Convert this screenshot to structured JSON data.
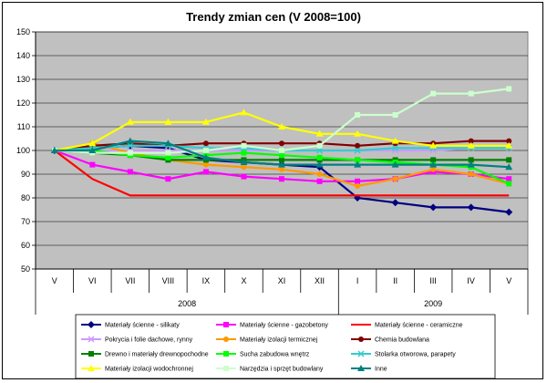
{
  "chart_data": {
    "type": "line",
    "title": "Trendy zmian cen (V 2008=100)",
    "xlabel": "",
    "ylabel": "",
    "ylim": [
      50,
      150
    ],
    "yticks": [
      50,
      60,
      70,
      80,
      90,
      100,
      110,
      120,
      130,
      140,
      150
    ],
    "grid": true,
    "plot_background": "#c0c0c0",
    "categories": [
      "V",
      "VI",
      "VII",
      "VIII",
      "IX",
      "X",
      "XI",
      "XII",
      "I",
      "II",
      "III",
      "IV",
      "V"
    ],
    "year_groups": [
      {
        "label": "2008",
        "start": 0,
        "end": 7
      },
      {
        "label": "2009",
        "start": 8,
        "end": 12
      }
    ],
    "legend_position": "bottom",
    "series": [
      {
        "name": "Materiały ścienne - silikaty",
        "color": "#000080",
        "marker": "diamond",
        "values": [
          100,
          101,
          102,
          101,
          96,
          95,
          94,
          93,
          80,
          78,
          76,
          76,
          74
        ]
      },
      {
        "name": "Materiały ścienne - gazobetony",
        "color": "#ff00ff",
        "marker": "square",
        "values": [
          100,
          94,
          91,
          88,
          91,
          89,
          88,
          87,
          87,
          88,
          91,
          90,
          88
        ]
      },
      {
        "name": "Materiały ścienne - ceramiczne",
        "color": "#ff0000",
        "marker": "none",
        "values": [
          100,
          88,
          81,
          81,
          81,
          81,
          81,
          81,
          81,
          81,
          81,
          81,
          81
        ]
      },
      {
        "name": "Pokrycia i folie dachowe, rynny",
        "color": "#cc99ff",
        "marker": "x",
        "values": [
          100,
          100,
          100,
          100,
          100,
          100,
          100,
          100,
          100,
          100,
          100,
          101,
          101
        ]
      },
      {
        "name": "Materiały izolacji termicznej",
        "color": "#ff9900",
        "marker": "circle",
        "values": [
          100,
          103,
          99,
          96,
          94,
          93,
          92,
          90,
          85,
          88,
          92,
          90,
          86
        ]
      },
      {
        "name": "Chemia budowlana",
        "color": "#800000",
        "marker": "circle",
        "values": [
          100,
          102,
          103,
          102,
          103,
          103,
          103,
          103,
          102,
          103,
          103,
          104,
          104
        ]
      },
      {
        "name": "Drewno i materiały drewnopochodne",
        "color": "#008000",
        "marker": "square",
        "values": [
          100,
          99,
          98,
          96,
          96,
          96,
          96,
          96,
          96,
          96,
          96,
          96,
          96
        ]
      },
      {
        "name": "Sucha zabudowa wnętrz",
        "color": "#00ff00",
        "marker": "square",
        "values": [
          100,
          100,
          98,
          97,
          98,
          99,
          98,
          97,
          96,
          95,
          94,
          93,
          86
        ]
      },
      {
        "name": "Stolarka otworowa, parapety",
        "color": "#33cccc",
        "marker": "x",
        "values": [
          100,
          101,
          102,
          102,
          101,
          101,
          100,
          100,
          100,
          101,
          101,
          101,
          101
        ]
      },
      {
        "name": "Materiały izolacji wodochronnej",
        "color": "#ffff00",
        "marker": "triangle",
        "values": [
          100,
          103,
          112,
          112,
          112,
          116,
          110,
          107,
          107,
          104,
          102,
          102,
          102
        ]
      },
      {
        "name": "Narzędzia i sprzęt budowlany",
        "color": "#ccffcc",
        "marker": "square",
        "values": [
          100,
          99,
          99,
          99,
          100,
          102,
          100,
          102,
          115,
          115,
          124,
          124,
          126
        ]
      },
      {
        "name": "Inne",
        "color": "#008080",
        "marker": "triangle",
        "values": [
          100,
          100,
          104,
          103,
          97,
          95,
          94,
          94,
          94,
          94,
          94,
          94,
          93
        ]
      }
    ]
  }
}
